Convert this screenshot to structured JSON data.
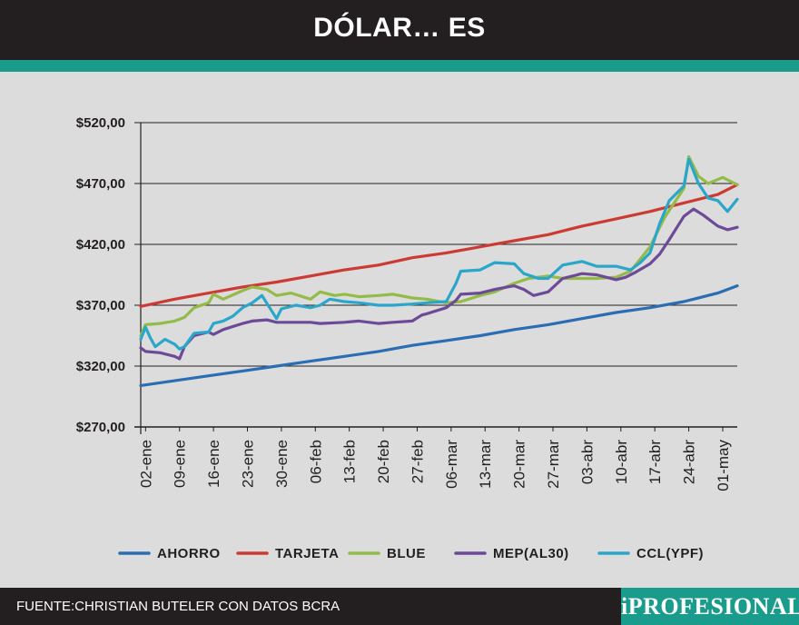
{
  "header": {
    "title": "DÓLAR… ES",
    "background": "#231f20"
  },
  "accent": "#1a9c8c",
  "footer": {
    "source": "FUENTE:CHRISTIAN BUTELER  CON DATOS BCRA",
    "brand": "iPROFESIONAL",
    "brand_bg": "#1a9c8c"
  },
  "chart_data": {
    "type": "line",
    "title": "DÓLAR… ES",
    "ylim": [
      270,
      520
    ],
    "yticks": [
      "$270,00",
      "$320,00",
      "$370,00",
      "$420,00",
      "$470,00",
      "$520,00"
    ],
    "ytick_values": [
      270,
      320,
      370,
      420,
      470,
      520
    ],
    "xtick_labels": [
      "02-ene",
      "09-ene",
      "16-ene",
      "23-ene",
      "30-ene",
      "06-feb",
      "13-feb",
      "20-feb",
      "27-feb",
      "06-mar",
      "13-mar",
      "20-mar",
      "27-mar",
      "03-abr",
      "10-abr",
      "17-abr",
      "24-abr",
      "01-may"
    ],
    "x_start": "2023-01-01",
    "x_end": "2023-05-04",
    "grid": true,
    "legend_position": "bottom",
    "series": [
      {
        "name": "AHORRO",
        "color": "#2b6db3",
        "points": [
          [
            "2023-01-01",
            304
          ],
          [
            "2023-01-08",
            308
          ],
          [
            "2023-01-15",
            312
          ],
          [
            "2023-01-22",
            316
          ],
          [
            "2023-01-29",
            320
          ],
          [
            "2023-02-05",
            324
          ],
          [
            "2023-02-12",
            328
          ],
          [
            "2023-02-19",
            332
          ],
          [
            "2023-02-26",
            337
          ],
          [
            "2023-03-05",
            341
          ],
          [
            "2023-03-12",
            345
          ],
          [
            "2023-03-19",
            350
          ],
          [
            "2023-03-26",
            354
          ],
          [
            "2023-04-02",
            359
          ],
          [
            "2023-04-09",
            364
          ],
          [
            "2023-04-16",
            368
          ],
          [
            "2023-04-23",
            373
          ],
          [
            "2023-04-30",
            380
          ],
          [
            "2023-05-04",
            386
          ]
        ]
      },
      {
        "name": "TARJETA",
        "color": "#cc3a33",
        "points": [
          [
            "2023-01-01",
            369
          ],
          [
            "2023-01-08",
            375
          ],
          [
            "2023-01-15",
            380
          ],
          [
            "2023-01-22",
            385
          ],
          [
            "2023-01-29",
            389
          ],
          [
            "2023-02-05",
            394
          ],
          [
            "2023-02-12",
            399
          ],
          [
            "2023-02-19",
            403
          ],
          [
            "2023-02-26",
            409
          ],
          [
            "2023-03-05",
            413
          ],
          [
            "2023-03-12",
            418
          ],
          [
            "2023-03-19",
            423
          ],
          [
            "2023-03-26",
            428
          ],
          [
            "2023-04-02",
            435
          ],
          [
            "2023-04-09",
            441
          ],
          [
            "2023-04-16",
            447
          ],
          [
            "2023-04-23",
            454
          ],
          [
            "2023-04-30",
            461
          ],
          [
            "2023-05-04",
            469
          ]
        ]
      },
      {
        "name": "BLUE",
        "color": "#93bb48",
        "points": [
          [
            "2023-01-01",
            345
          ],
          [
            "2023-01-02",
            354
          ],
          [
            "2023-01-05",
            355
          ],
          [
            "2023-01-08",
            357
          ],
          [
            "2023-01-10",
            360
          ],
          [
            "2023-01-12",
            368
          ],
          [
            "2023-01-15",
            372
          ],
          [
            "2023-01-16",
            379
          ],
          [
            "2023-01-18",
            375
          ],
          [
            "2023-01-22",
            382
          ],
          [
            "2023-01-24",
            385
          ],
          [
            "2023-01-27",
            383
          ],
          [
            "2023-01-29",
            378
          ],
          [
            "2023-02-01",
            380
          ],
          [
            "2023-02-05",
            375
          ],
          [
            "2023-02-07",
            381
          ],
          [
            "2023-02-10",
            378
          ],
          [
            "2023-02-12",
            379
          ],
          [
            "2023-02-15",
            377
          ],
          [
            "2023-02-19",
            378
          ],
          [
            "2023-02-22",
            379
          ],
          [
            "2023-02-26",
            376
          ],
          [
            "2023-03-01",
            375
          ],
          [
            "2023-03-05",
            372
          ],
          [
            "2023-03-08",
            373
          ],
          [
            "2023-03-12",
            378
          ],
          [
            "2023-03-15",
            381
          ],
          [
            "2023-03-19",
            388
          ],
          [
            "2023-03-22",
            392
          ],
          [
            "2023-03-26",
            394
          ],
          [
            "2023-03-29",
            392
          ],
          [
            "2023-04-02",
            392
          ],
          [
            "2023-04-05",
            392
          ],
          [
            "2023-04-09",
            393
          ],
          [
            "2023-04-12",
            398
          ],
          [
            "2023-04-16",
            418
          ],
          [
            "2023-04-19",
            442
          ],
          [
            "2023-04-23",
            466
          ],
          [
            "2023-04-24",
            492
          ],
          [
            "2023-04-26",
            476
          ],
          [
            "2023-04-28",
            470
          ],
          [
            "2023-05-01",
            475
          ],
          [
            "2023-05-02",
            473
          ],
          [
            "2023-05-04",
            469
          ]
        ]
      },
      {
        "name": "MEP(AL30)",
        "color": "#6c4a98",
        "points": [
          [
            "2023-01-01",
            335
          ],
          [
            "2023-01-02",
            332
          ],
          [
            "2023-01-05",
            331
          ],
          [
            "2023-01-08",
            328
          ],
          [
            "2023-01-09",
            326
          ],
          [
            "2023-01-10",
            336
          ],
          [
            "2023-01-12",
            345
          ],
          [
            "2023-01-15",
            348
          ],
          [
            "2023-01-16",
            346
          ],
          [
            "2023-01-18",
            350
          ],
          [
            "2023-01-22",
            355
          ],
          [
            "2023-01-24",
            357
          ],
          [
            "2023-01-27",
            358
          ],
          [
            "2023-01-29",
            356
          ],
          [
            "2023-02-01",
            356
          ],
          [
            "2023-02-05",
            356
          ],
          [
            "2023-02-07",
            355
          ],
          [
            "2023-02-12",
            356
          ],
          [
            "2023-02-15",
            357
          ],
          [
            "2023-02-19",
            355
          ],
          [
            "2023-02-22",
            356
          ],
          [
            "2023-02-26",
            357
          ],
          [
            "2023-02-28",
            362
          ],
          [
            "2023-03-01",
            363
          ],
          [
            "2023-03-05",
            368
          ],
          [
            "2023-03-07",
            374
          ],
          [
            "2023-03-08",
            379
          ],
          [
            "2023-03-12",
            380
          ],
          [
            "2023-03-15",
            383
          ],
          [
            "2023-03-19",
            386
          ],
          [
            "2023-03-21",
            383
          ],
          [
            "2023-03-23",
            378
          ],
          [
            "2023-03-26",
            381
          ],
          [
            "2023-03-29",
            392
          ],
          [
            "2023-04-02",
            396
          ],
          [
            "2023-04-05",
            395
          ],
          [
            "2023-04-09",
            391
          ],
          [
            "2023-04-11",
            393
          ],
          [
            "2023-04-13",
            397
          ],
          [
            "2023-04-16",
            404
          ],
          [
            "2023-04-18",
            412
          ],
          [
            "2023-04-20",
            424
          ],
          [
            "2023-04-23",
            443
          ],
          [
            "2023-04-25",
            449
          ],
          [
            "2023-04-27",
            444
          ],
          [
            "2023-04-30",
            435
          ],
          [
            "2023-05-02",
            432
          ],
          [
            "2023-05-04",
            434
          ]
        ]
      },
      {
        "name": "CCL(YPF)",
        "color": "#2aa6ca",
        "points": [
          [
            "2023-01-01",
            342
          ],
          [
            "2023-01-02",
            352
          ],
          [
            "2023-01-03",
            343
          ],
          [
            "2023-01-04",
            336
          ],
          [
            "2023-01-06",
            342
          ],
          [
            "2023-01-08",
            338
          ],
          [
            "2023-01-09",
            334
          ],
          [
            "2023-01-10",
            336
          ],
          [
            "2023-01-12",
            347
          ],
          [
            "2023-01-15",
            348
          ],
          [
            "2023-01-16",
            355
          ],
          [
            "2023-01-18",
            357
          ],
          [
            "2023-01-20",
            361
          ],
          [
            "2023-01-22",
            368
          ],
          [
            "2023-01-24",
            372
          ],
          [
            "2023-01-26",
            378
          ],
          [
            "2023-01-29",
            359
          ],
          [
            "2023-01-30",
            367
          ],
          [
            "2023-02-02",
            370
          ],
          [
            "2023-02-05",
            368
          ],
          [
            "2023-02-07",
            370
          ],
          [
            "2023-02-09",
            375
          ],
          [
            "2023-02-12",
            373
          ],
          [
            "2023-02-15",
            372
          ],
          [
            "2023-02-19",
            370
          ],
          [
            "2023-02-22",
            370
          ],
          [
            "2023-02-26",
            371
          ],
          [
            "2023-03-01",
            372
          ],
          [
            "2023-03-05",
            373
          ],
          [
            "2023-03-07",
            388
          ],
          [
            "2023-03-08",
            398
          ],
          [
            "2023-03-12",
            399
          ],
          [
            "2023-03-15",
            405
          ],
          [
            "2023-03-19",
            404
          ],
          [
            "2023-03-21",
            396
          ],
          [
            "2023-03-24",
            392
          ],
          [
            "2023-03-26",
            392
          ],
          [
            "2023-03-29",
            403
          ],
          [
            "2023-04-02",
            406
          ],
          [
            "2023-04-05",
            402
          ],
          [
            "2023-04-09",
            402
          ],
          [
            "2023-04-12",
            399
          ],
          [
            "2023-04-14",
            405
          ],
          [
            "2023-04-16",
            413
          ],
          [
            "2023-04-18",
            437
          ],
          [
            "2023-04-20",
            456
          ],
          [
            "2023-04-23",
            468
          ],
          [
            "2023-04-24",
            490
          ],
          [
            "2023-04-26",
            470
          ],
          [
            "2023-04-28",
            458
          ],
          [
            "2023-04-30",
            456
          ],
          [
            "2023-05-02",
            447
          ],
          [
            "2023-05-04",
            457
          ]
        ]
      }
    ]
  }
}
